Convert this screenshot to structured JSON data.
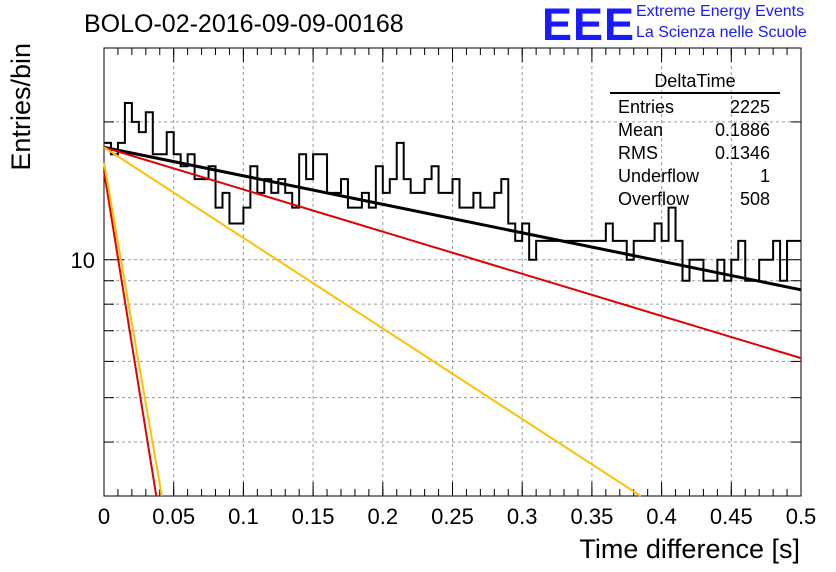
{
  "title": "BOLO-02-2016-09-09-00168",
  "logo": {
    "text": "EEE",
    "line1": "Extreme Energy Events",
    "line2": "La Scienza nelle Scuole",
    "color": "#1a1aff"
  },
  "stats": {
    "title": "DeltaTime",
    "rows": [
      {
        "label": "Entries",
        "value": "2225"
      },
      {
        "label": "Mean",
        "value": "0.1886"
      },
      {
        "label": "RMS",
        "value": "0.1346"
      },
      {
        "label": "Underflow",
        "value": "1"
      },
      {
        "label": "Overflow",
        "value": "508"
      }
    ]
  },
  "chart_data": {
    "type": "line",
    "xlabel": "Time difference [s]",
    "ylabel": "Entries/bin",
    "xlim": [
      0,
      0.5
    ],
    "ylim": [
      3.05,
      29
    ],
    "yscale": "log",
    "grid": true,
    "x_ticks": [
      "0",
      "0.05",
      "0.1",
      "0.15",
      "0.2",
      "0.25",
      "0.3",
      "0.35",
      "0.4",
      "0.45",
      "0.5"
    ],
    "y_ticks": [
      "10"
    ],
    "histogram": {
      "bin_width": 0.005,
      "counts": [
        18,
        17,
        18,
        22,
        20,
        19,
        21,
        17,
        17,
        19,
        17,
        16,
        17,
        15,
        15,
        16,
        13,
        14,
        12,
        12,
        13,
        16,
        14,
        15,
        14,
        15,
        14,
        13,
        17,
        15,
        17,
        17,
        14,
        14,
        15,
        13,
        13,
        14,
        13,
        16,
        14,
        15,
        18,
        15,
        14,
        14,
        15,
        16,
        14,
        14,
        15,
        13,
        13,
        14,
        13,
        13,
        14,
        15,
        12,
        11,
        12,
        10,
        11,
        11,
        11,
        11,
        11,
        11,
        11,
        11,
        11,
        11,
        12,
        11,
        11,
        10,
        11,
        11,
        11,
        12,
        11,
        13,
        11,
        9,
        10,
        10,
        9,
        9,
        10,
        9,
        10,
        11,
        9,
        9,
        10,
        10,
        11,
        9,
        11,
        11
      ],
      "color": "#000000"
    },
    "fits": [
      {
        "x": [
          0.0,
          0.5
        ],
        "y": [
          17.6,
          8.6
        ],
        "color": "#000000"
      },
      {
        "x": [
          0.0,
          0.5
        ],
        "y": [
          17.6,
          6.1
        ],
        "color": "#e00000"
      },
      {
        "x": [
          0.0,
          0.385
        ],
        "y": [
          17.6,
          3.05
        ],
        "color": "#ffc000"
      },
      {
        "x": [
          0.0,
          0.0375
        ],
        "y": [
          15.6,
          3.05
        ],
        "color": "#e00000"
      },
      {
        "x": [
          0.0,
          0.0415
        ],
        "y": [
          16.3,
          3.05
        ],
        "color": "#ffc000"
      }
    ]
  }
}
